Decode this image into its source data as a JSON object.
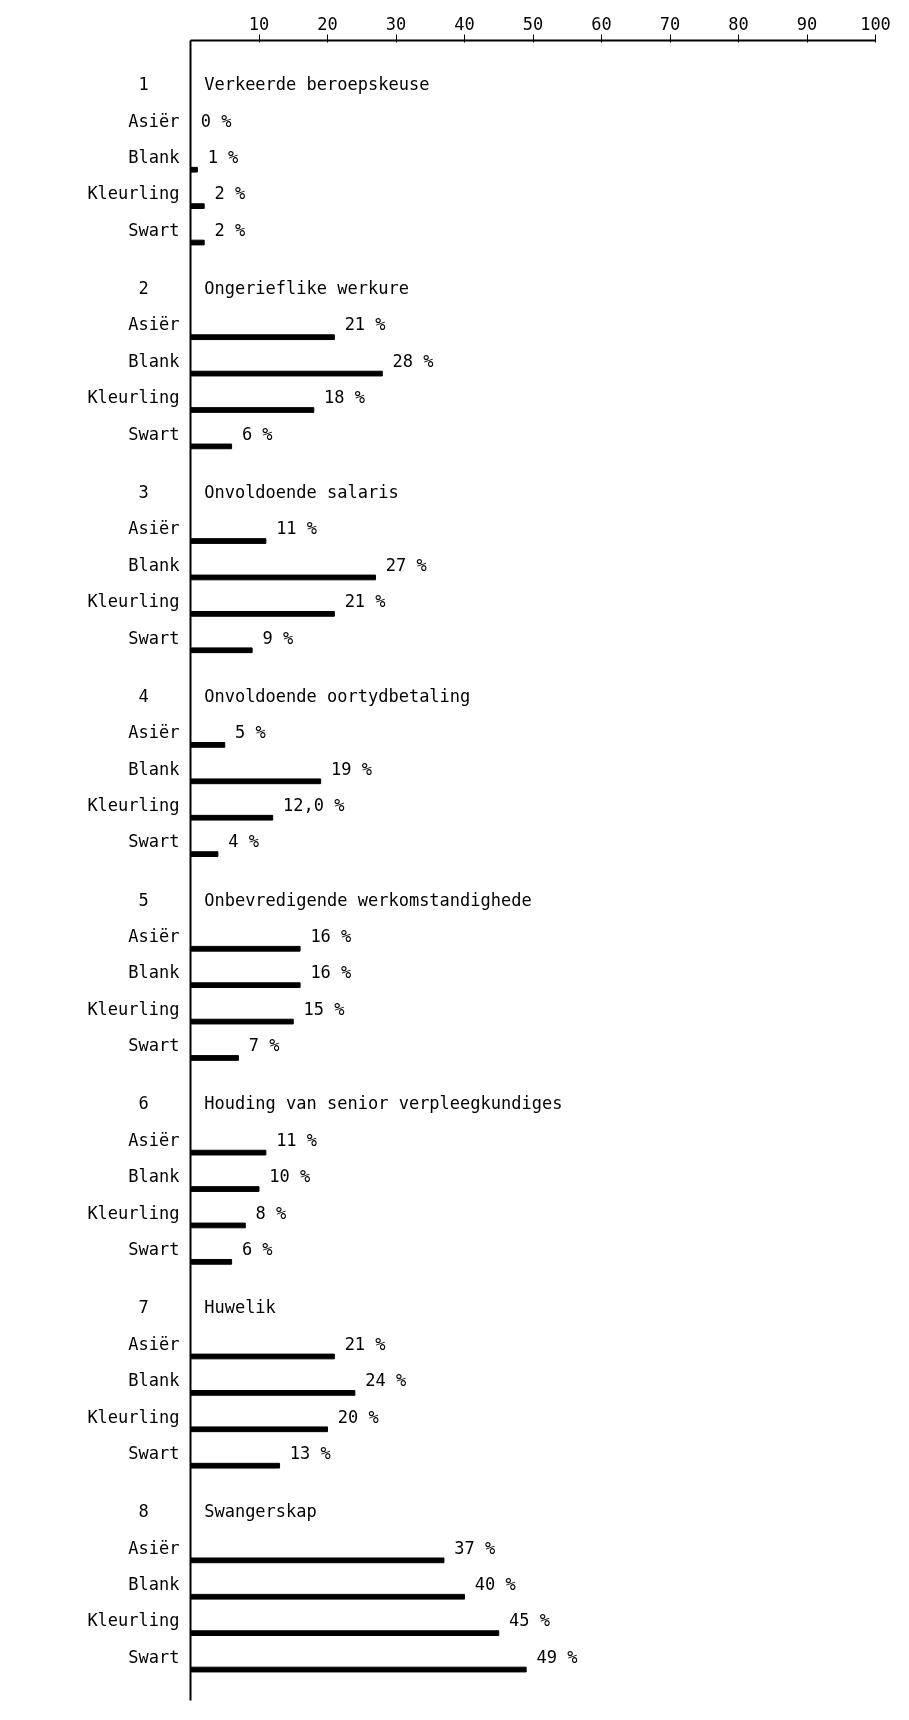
{
  "chart_data": {
    "type": "bar",
    "orientation": "horizontal",
    "color": "#000000",
    "xlim": [
      0,
      100
    ],
    "xticks": [
      10,
      20,
      30,
      40,
      50,
      60,
      70,
      80,
      90,
      100
    ],
    "grid": false,
    "categories": [
      "Asiër",
      "Blank",
      "Kleurling",
      "Swart",
      "Asiër",
      "Blank",
      "Kleurling",
      "Swart",
      "Asiër",
      "Blank",
      "Kleurling",
      "Swart",
      "Asiër",
      "Blank",
      "Kleurling",
      "Swart",
      "Asiër",
      "Blank",
      "Kleurling",
      "Swart",
      "Asiër",
      "Blank",
      "Kleurling",
      "Swart",
      "Asiër",
      "Blank",
      "Kleurling",
      "Swart",
      "Asiër",
      "Blank",
      "Kleurling",
      "Swart"
    ],
    "values": [
      0,
      1,
      2,
      2,
      21,
      28,
      18,
      6,
      11,
      27,
      21,
      9,
      5,
      19,
      12.0,
      4,
      16,
      16,
      15,
      7,
      11,
      10,
      8,
      6,
      21,
      24,
      20,
      13,
      37,
      40,
      45,
      49
    ],
    "value_labels": [
      "0 %",
      "1 %",
      "2 %",
      "2 %",
      "21 %",
      "28 %",
      "18 %",
      "6 %",
      "11 %",
      "27 %",
      "21 %",
      "9 %",
      "5 %",
      "19 %",
      "12,0 %",
      "4 %",
      "16 %",
      "16 %",
      "15 %",
      "7 %",
      "11 %",
      "10 %",
      "8 %",
      "6 %",
      "21 %",
      "24 %",
      "20 %",
      "13 %",
      "37 %",
      "40 %",
      "45 %",
      "49 %"
    ],
    "annotations": [
      "1",
      "Verkeerde beroepskeuse",
      "2",
      "Ongerieflike werkure",
      "3",
      "Onvoldoende salaris",
      "4",
      "Onvoldoende oortydbetaling",
      "5",
      "Onbevredigende werkomstandighede",
      "6",
      "Houding van senior verpleegkundiges",
      "7",
      "Huwelik",
      "8",
      "Swangerskap"
    ]
  }
}
